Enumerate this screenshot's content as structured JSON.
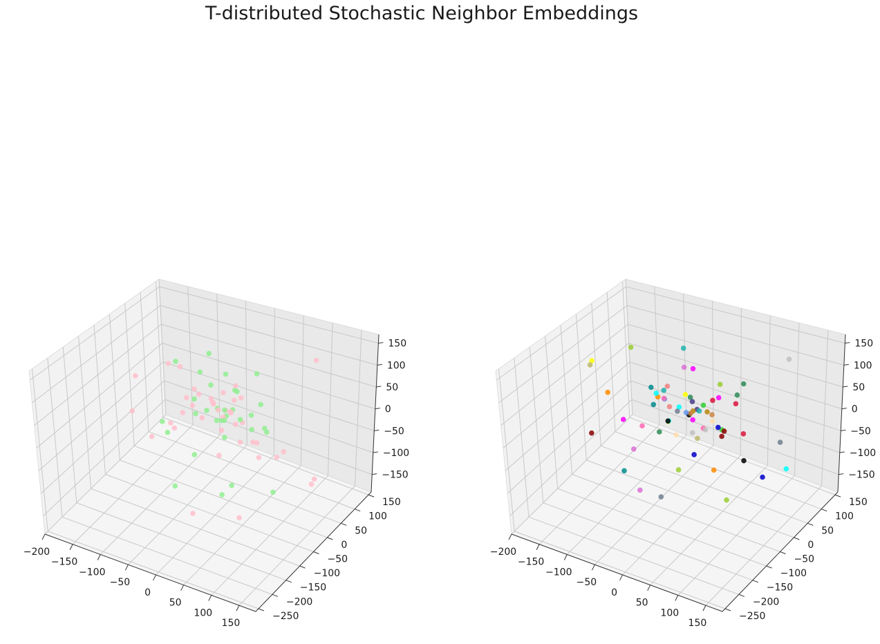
{
  "title": "T-distributed Stochastic Neighbor Embeddings",
  "chart_data": [
    {
      "type": "scatter",
      "projection": "3d",
      "grid": true,
      "x_ticks": [
        "−200",
        "−150",
        "−100",
        "−50",
        "0",
        "50",
        "100",
        "150"
      ],
      "y_ticks": [
        "−250",
        "−200",
        "−150",
        "−100",
        "−50",
        "0",
        "50",
        "100",
        "150"
      ],
      "z_ticks": [
        "−150",
        "−100",
        "−50",
        "0",
        "50",
        "100",
        "150"
      ],
      "xlim": [
        -200,
        180
      ],
      "ylim": [
        -260,
        160
      ],
      "zlim": [
        -190,
        170
      ],
      "colors": [
        "#ffc0cb",
        "#90ee90"
      ],
      "points": [
        [
          -20,
          10,
          120,
          1
        ],
        [
          -60,
          -30,
          110,
          1
        ],
        [
          -80,
          -20,
          90,
          0
        ],
        [
          60,
          20,
          105,
          1
        ],
        [
          150,
          60,
          150,
          0
        ],
        [
          -120,
          -60,
          70,
          0
        ],
        [
          -40,
          10,
          70,
          1
        ],
        [
          10,
          30,
          40,
          1
        ],
        [
          -10,
          -10,
          30,
          0
        ],
        [
          20,
          0,
          20,
          1
        ],
        [
          -30,
          20,
          10,
          0
        ],
        [
          0,
          -20,
          0,
          1
        ],
        [
          30,
          10,
          -10,
          0
        ],
        [
          -50,
          0,
          -20,
          1
        ],
        [
          40,
          -20,
          -30,
          0
        ],
        [
          -20,
          30,
          -40,
          1
        ],
        [
          10,
          10,
          5,
          0
        ],
        [
          -5,
          -5,
          15,
          1
        ],
        [
          25,
          -15,
          25,
          0
        ],
        [
          -35,
          -25,
          35,
          1
        ],
        [
          50,
          40,
          20,
          1
        ],
        [
          -70,
          10,
          0,
          0
        ],
        [
          70,
          -30,
          -10,
          0
        ],
        [
          -90,
          -40,
          -30,
          1
        ],
        [
          90,
          30,
          -60,
          0
        ],
        [
          -110,
          20,
          -80,
          0
        ],
        [
          110,
          -50,
          -90,
          1
        ],
        [
          -130,
          -10,
          -100,
          0
        ],
        [
          130,
          40,
          -120,
          0
        ],
        [
          -60,
          -70,
          -140,
          1
        ],
        [
          60,
          -80,
          -150,
          0
        ],
        [
          -20,
          -90,
          -170,
          0
        ],
        [
          20,
          -60,
          -130,
          1
        ],
        [
          -150,
          -30,
          -40,
          0
        ],
        [
          160,
          0,
          -70,
          0
        ],
        [
          -10,
          40,
          60,
          1
        ],
        [
          15,
          25,
          55,
          0
        ],
        [
          -25,
          15,
          45,
          1
        ],
        [
          35,
          5,
          50,
          0
        ],
        [
          -45,
          -5,
          40,
          0
        ],
        [
          5,
          45,
          25,
          1
        ],
        [
          -15,
          35,
          20,
          0
        ],
        [
          45,
          15,
          10,
          1
        ],
        [
          -55,
          25,
          5,
          0
        ],
        [
          55,
          -5,
          -5,
          1
        ],
        [
          -65,
          -15,
          -15,
          0
        ],
        [
          65,
          25,
          -25,
          1
        ],
        [
          -75,
          35,
          -35,
          0
        ],
        [
          75,
          -25,
          -45,
          0
        ],
        [
          -85,
          -35,
          -55,
          1
        ],
        [
          85,
          15,
          -65,
          0
        ],
        [
          -95,
          5,
          -75,
          0
        ],
        [
          0,
          0,
          -50,
          1
        ],
        [
          10,
          -40,
          -60,
          0
        ],
        [
          -30,
          -50,
          -70,
          1
        ],
        [
          30,
          50,
          -80,
          0
        ],
        [
          -40,
          60,
          -90,
          0
        ],
        [
          40,
          -60,
          -100,
          1
        ],
        [
          -100,
          50,
          30,
          0
        ],
        [
          100,
          -40,
          40,
          1
        ],
        [
          -5,
          20,
          -5,
          0
        ],
        [
          12,
          -8,
          8,
          1
        ],
        [
          -18,
          6,
          12,
          0
        ],
        [
          22,
          18,
          -12,
          1
        ],
        [
          -28,
          -18,
          -8,
          0
        ],
        [
          8,
          28,
          18,
          0
        ],
        [
          -12,
          -28,
          22,
          1
        ],
        [
          18,
          8,
          -18,
          0
        ],
        [
          -2,
          12,
          2,
          1
        ],
        [
          3,
          -3,
          -2,
          0
        ],
        [
          -8,
          2,
          6,
          0
        ],
        [
          6,
          -6,
          -6,
          1
        ]
      ]
    },
    {
      "type": "scatter",
      "projection": "3d",
      "grid": true,
      "x_ticks": [
        "−200",
        "−150",
        "−100",
        "−50",
        "0",
        "50",
        "100",
        "150"
      ],
      "y_ticks": [
        "−250",
        "−200",
        "−150",
        "−100",
        "−50",
        "0",
        "50",
        "100",
        "150"
      ],
      "z_ticks": [
        "−150",
        "−100",
        "−50",
        "0",
        "50",
        "100",
        "150"
      ],
      "xlim": [
        -200,
        180
      ],
      "ylim": [
        -260,
        160
      ],
      "zlim": [
        -190,
        170
      ],
      "colors": [
        "#20b2aa",
        "#ff00ff",
        "#2e8b57",
        "#c0c0c0",
        "#ffff00",
        "#dc143c",
        "#ff69b4",
        "#8b0000",
        "#00ffff",
        "#0000cd",
        "#ff8c00",
        "#9acd32",
        "#008b8b",
        "#708090",
        "#da70d6",
        "#cd853f",
        "#6495ed",
        "#32cd32",
        "#f08080",
        "#bdb76b",
        "#483d8b",
        "#b8860b",
        "#000000",
        "#ffdead"
      ],
      "points": [
        [
          -10,
          20,
          130,
          0
        ],
        [
          10,
          10,
          100,
          1
        ],
        [
          150,
          80,
          140,
          3
        ],
        [
          90,
          30,
          90,
          2
        ],
        [
          -160,
          -20,
          60,
          4
        ],
        [
          -170,
          -10,
          40,
          19
        ],
        [
          -60,
          -10,
          40,
          12
        ],
        [
          40,
          40,
          60,
          11
        ],
        [
          110,
          -20,
          20,
          5
        ],
        [
          -100,
          -40,
          -30,
          1
        ],
        [
          -150,
          -60,
          -70,
          7
        ],
        [
          -80,
          -50,
          -80,
          14
        ],
        [
          20,
          -30,
          -60,
          9
        ],
        [
          60,
          -40,
          -70,
          10
        ],
        [
          0,
          0,
          0,
          22
        ],
        [
          10,
          10,
          10,
          20
        ],
        [
          -20,
          5,
          5,
          8
        ],
        [
          30,
          -10,
          -10,
          6
        ],
        [
          -30,
          15,
          -15,
          13
        ],
        [
          40,
          5,
          15,
          15
        ],
        [
          -40,
          -5,
          20,
          16
        ],
        [
          50,
          15,
          -20,
          17
        ],
        [
          -50,
          25,
          25,
          18
        ],
        [
          20,
          -20,
          30,
          21
        ],
        [
          -10,
          -30,
          -30,
          23
        ],
        [
          5,
          25,
          -5,
          0
        ],
        [
          15,
          -15,
          5,
          1
        ],
        [
          -15,
          35,
          10,
          2
        ],
        [
          25,
          5,
          -25,
          3
        ],
        [
          -25,
          -25,
          -10,
          4
        ],
        [
          35,
          20,
          35,
          5
        ],
        [
          -35,
          -15,
          30,
          6
        ],
        [
          45,
          30,
          -35,
          7
        ],
        [
          -45,
          10,
          -40,
          8
        ],
        [
          55,
          -5,
          0,
          9
        ],
        [
          -55,
          0,
          15,
          10
        ],
        [
          0,
          -50,
          -90,
          11
        ],
        [
          -90,
          -70,
          -120,
          12
        ],
        [
          -20,
          -80,
          -140,
          13
        ],
        [
          -70,
          -60,
          -160,
          14
        ],
        [
          160,
          20,
          -60,
          8
        ],
        [
          100,
          -10,
          -50,
          22
        ],
        [
          130,
          60,
          -40,
          13
        ],
        [
          -120,
          40,
          70,
          11
        ],
        [
          70,
          40,
          50,
          2
        ],
        [
          -30,
          50,
          60,
          14
        ],
        [
          8,
          -8,
          12,
          15
        ],
        [
          -12,
          12,
          -8,
          16
        ],
        [
          18,
          18,
          18,
          17
        ],
        [
          -22,
          -22,
          22,
          18
        ],
        [
          28,
          -28,
          -22,
          19
        ],
        [
          -8,
          28,
          8,
          20
        ],
        [
          12,
          38,
          -12,
          21
        ],
        [
          -18,
          -38,
          2,
          22
        ],
        [
          38,
          8,
          -2,
          23
        ],
        [
          -38,
          -8,
          42,
          0
        ],
        [
          48,
          18,
          48,
          1
        ],
        [
          -48,
          -18,
          -48,
          2
        ],
        [
          2,
          2,
          -40,
          3
        ],
        [
          -2,
          -2,
          45,
          4
        ],
        [
          60,
          50,
          20,
          5
        ],
        [
          -60,
          -50,
          -20,
          6
        ],
        [
          75,
          -30,
          5,
          7
        ],
        [
          -75,
          30,
          -5,
          8
        ],
        [
          120,
          10,
          -90,
          9
        ],
        [
          -130,
          -30,
          10,
          10
        ],
        [
          90,
          -60,
          -110,
          11
        ],
        [
          -100,
          60,
          -60,
          12
        ]
      ]
    }
  ]
}
